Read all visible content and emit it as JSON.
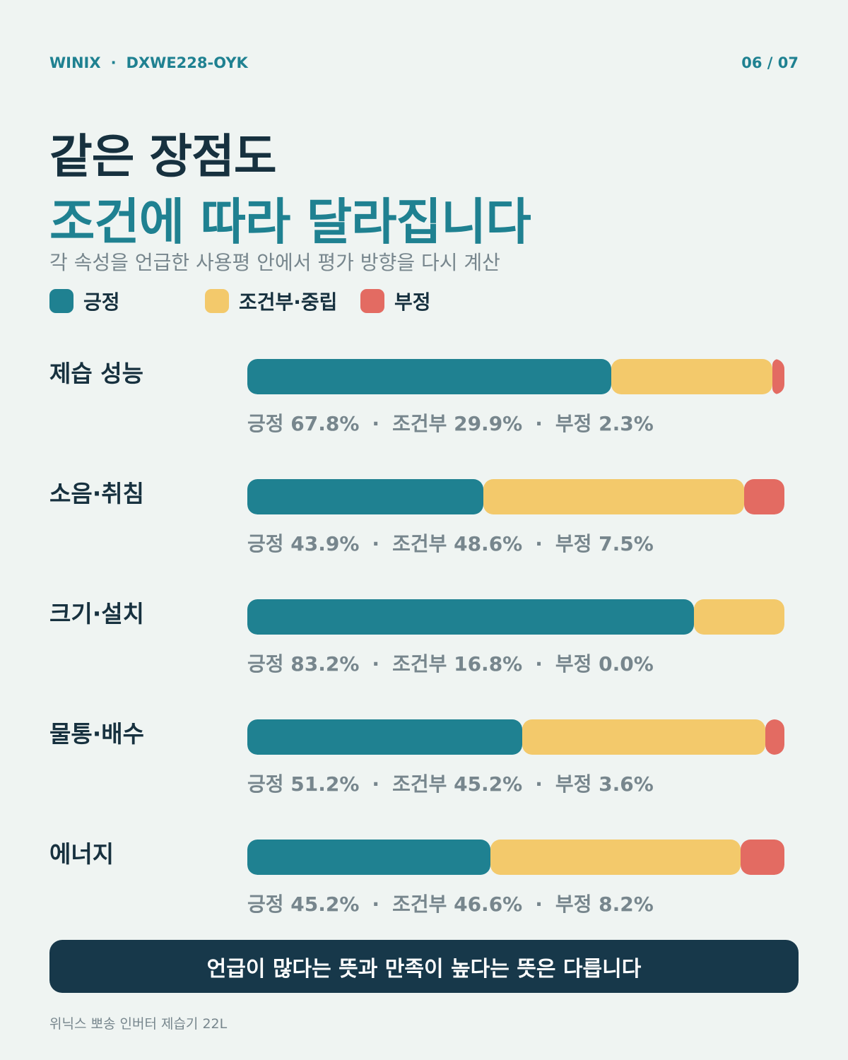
{
  "header": {
    "brand": "WINIX",
    "separator": "·",
    "model": "DXWE228-OYK",
    "page": "06 / 07"
  },
  "title_line1": "같은 장점도",
  "title_line2": "조건에 따라 달라집니다",
  "subtitle": "각 속성을 언급한 사용평 안에서 평가 방향을 다시 계산",
  "legend": [
    {
      "label": "긍정",
      "color": "#1f8191"
    },
    {
      "label": "조건부·중립",
      "color": "#f3c96b"
    },
    {
      "label": "부정",
      "color": "#e36b62"
    }
  ],
  "stat_labels": {
    "positive": "긍정",
    "conditional": "조건부",
    "negative": "부정",
    "separator": "·"
  },
  "chart_data": {
    "type": "bar",
    "stacked": true,
    "orientation": "horizontal",
    "unit": "%",
    "categories": [
      "제습 성능",
      "소음·취침",
      "크기·설치",
      "물통·배수",
      "에너지"
    ],
    "series": [
      {
        "name": "긍정",
        "color": "#1f8191",
        "values": [
          67.8,
          43.9,
          83.2,
          51.2,
          45.2
        ]
      },
      {
        "name": "조건부·중립",
        "color": "#f3c96b",
        "values": [
          29.9,
          48.6,
          16.8,
          45.2,
          46.6
        ]
      },
      {
        "name": "부정",
        "color": "#e36b62",
        "values": [
          2.3,
          7.5,
          0.0,
          3.6,
          8.2
        ]
      }
    ],
    "xlim": [
      0,
      100
    ]
  },
  "banner": "언급이 많다는 뜻과 만족이 높다는 뜻은 다릅니다",
  "footer": "위닉스 뽀송 인버터 제습기 22L"
}
